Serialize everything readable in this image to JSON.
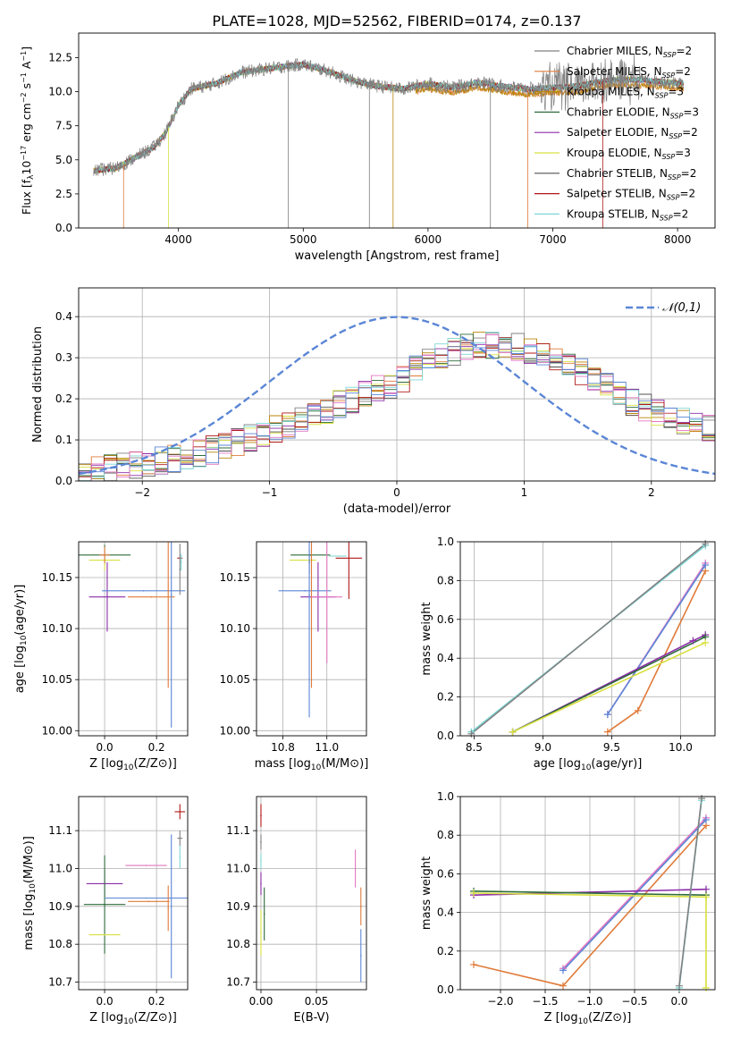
{
  "figure_title": "PLATE=1028, MJD=52562, FIBERID=0174, z=0.137",
  "chart_data": [
    {
      "id": "spectrum",
      "type": "line",
      "xlabel": "wavelength [Angstrom, rest frame]",
      "ylabel": "Flux [f",
      "ylabel_html": "Flux [f_λ 10^-17 erg cm^-2 s^-1 A^-1]",
      "xlim": [
        3200,
        8300
      ],
      "ylim": [
        0,
        14.3
      ],
      "xticks": [
        4000,
        5000,
        6000,
        7000,
        8000
      ],
      "yticks": [
        0.0,
        2.5,
        5.0,
        7.5,
        10.0,
        12.5
      ],
      "grid": false,
      "legend_position": "top-right",
      "continuum_anchors_x": [
        3320,
        3500,
        3700,
        3800,
        3900,
        4000,
        4100,
        4300,
        4500,
        4800,
        5000,
        5200,
        5400,
        5600,
        5800,
        6000,
        6200,
        6400,
        6600,
        6800,
        7000,
        7200,
        7400,
        7600,
        7800,
        8050
      ],
      "continuum_anchors_y": [
        4.2,
        4.4,
        5.4,
        5.9,
        7.0,
        9.0,
        10.2,
        10.6,
        11.4,
        11.8,
        12.0,
        11.5,
        10.8,
        10.4,
        10.2,
        10.6,
        10.3,
        10.7,
        10.4,
        10.2,
        10.3,
        10.4,
        10.8,
        10.9,
        10.8,
        10.6
      ],
      "series": [
        {
          "name": "Chabrier MILES, N_SSP=2",
          "color": "#808080"
        },
        {
          "name": "Salpeter MILES, N_SSP=2",
          "color": "#e07b39"
        },
        {
          "name": "Kroupa MILES, N_SSP=3",
          "color": "#b8860b"
        },
        {
          "name": "Chabrier ELODIE, N_SSP=3",
          "color": "#2e6b3a"
        },
        {
          "name": "Salpeter ELODIE, N_SSP=2",
          "color": "#8b2ca8"
        },
        {
          "name": "Kroupa ELODIE, N_SSP=3",
          "color": "#d8e040"
        },
        {
          "name": "Chabrier STELIB, N_SSP=2",
          "color": "#505050"
        },
        {
          "name": "Salpeter STELIB, N_SSP=2",
          "color": "#b01818"
        },
        {
          "name": "Kroupa STELIB, N_SSP=2",
          "color": "#7ed6d6"
        }
      ],
      "legend_entries": [
        {
          "pre": "Chabrier MILES, N",
          "sub": "SSP",
          "post": "=2",
          "color": "#808080"
        },
        {
          "pre": "Salpeter MILES, N",
          "sub": "SSP",
          "post": "=2",
          "color": "#e07b39"
        },
        {
          "pre": "Kroupa MILES, N",
          "sub": "SSP",
          "post": "=3",
          "color": "#b8860b"
        },
        {
          "pre": "Chabrier ELODIE, N",
          "sub": "SSP",
          "post": "=3",
          "color": "#2e6b3a"
        },
        {
          "pre": "Salpeter ELODIE, N",
          "sub": "SSP",
          "post": "=2",
          "color": "#8b2ca8"
        },
        {
          "pre": "Kroupa ELODIE, N",
          "sub": "SSP",
          "post": "=3",
          "color": "#d8e040"
        },
        {
          "pre": "Chabrier STELIB, N",
          "sub": "SSP",
          "post": "=2",
          "color": "#505050"
        },
        {
          "pre": "Salpeter STELIB, N",
          "sub": "SSP",
          "post": "=2",
          "color": "#b01818"
        },
        {
          "pre": "Kroupa STELIB, N",
          "sub": "SSP",
          "post": "=2",
          "color": "#7ed6d6"
        }
      ]
    },
    {
      "id": "residuals",
      "type": "line",
      "xlabel": "(data-model)/error",
      "ylabel": "Normed distribution",
      "xlim": [
        -2.5,
        2.5
      ],
      "ylim": [
        0,
        0.47
      ],
      "xticks": [
        -2,
        -1,
        0,
        1,
        2
      ],
      "yticks": [
        0.0,
        0.1,
        0.2,
        0.3,
        0.4
      ],
      "grid": true,
      "legend_position": "top-right",
      "gaussian": {
        "label": "𝒩(0,1)",
        "mean": 0,
        "sigma": 1,
        "color": "#5b86d6"
      },
      "bin_width": 0.1,
      "histogram_envelope_x": [
        -2.5,
        -2.0,
        -1.5,
        -1.0,
        -0.5,
        0.0,
        0.3,
        0.6,
        0.9,
        1.2,
        1.5,
        1.8,
        2.1,
        2.5
      ],
      "histogram_envelope_y": [
        0.02,
        0.04,
        0.07,
        0.12,
        0.18,
        0.24,
        0.3,
        0.33,
        0.33,
        0.3,
        0.26,
        0.2,
        0.16,
        0.12
      ],
      "series_colors": [
        "#808080",
        "#e07b39",
        "#b8860b",
        "#2e6b3a",
        "#8b2ca8",
        "#d8e040",
        "#505050",
        "#b01818",
        "#7ed6d6",
        "#e377c2",
        "#5b86d6"
      ]
    },
    {
      "id": "age_vs_Z",
      "type": "scatter",
      "xlabel": "Z [log",
      "ylabel": "age  [log",
      "xlim": [
        -0.1,
        0.32
      ],
      "ylim": [
        9.995,
        10.185
      ],
      "xticks": [
        0.0,
        0.2
      ],
      "yticks": [
        10.0,
        10.05,
        10.1,
        10.15
      ],
      "grid": true,
      "points": [
        {
          "x": 0.0,
          "y": 10.172,
          "xerr": 0.1,
          "yerr": 0.01,
          "color": "#2e6b3a"
        },
        {
          "x": 0.0,
          "y": 10.167,
          "xerr": 0.06,
          "yerr": 0.01,
          "color": "#d8e040"
        },
        {
          "x": 0.0,
          "y": 10.172,
          "xerr": 0.02,
          "yerr": 0.008,
          "color": "#e07b39"
        },
        {
          "x": 0.01,
          "y": 10.131,
          "xerr": 0.07,
          "yerr": 0.034,
          "color": "#8b2ca8"
        },
        {
          "x": 0.15,
          "y": 10.137,
          "xerr": 0.16,
          "yerr": 0.0,
          "color": "#5b86d6"
        },
        {
          "x": 0.18,
          "y": 10.131,
          "xerr": 0.09,
          "yerr": 0.0,
          "color": "#e07b39"
        },
        {
          "x": 0.245,
          "y": 10.137,
          "xerr": 0.0,
          "yerr": 0.095,
          "color": "#e07b39"
        },
        {
          "x": 0.257,
          "y": 10.133,
          "xerr": 0.0,
          "yerr": 0.13,
          "color": "#5b86d6"
        },
        {
          "x": 0.29,
          "y": 10.169,
          "xerr": 0.01,
          "yerr": 0.0,
          "color": "#b01818"
        },
        {
          "x": 0.295,
          "y": 10.165,
          "xerr": 0.0,
          "yerr": 0.008,
          "color": "#7ed6d6"
        },
        {
          "x": 0.29,
          "y": 10.158,
          "xerr": 0.0,
          "yerr": 0.025,
          "color": "#808080"
        }
      ]
    },
    {
      "id": "age_vs_mass",
      "type": "scatter",
      "xlabel": "mass [log",
      "ylabel": "",
      "xlim": [
        10.68,
        11.18
      ],
      "ylim": [
        9.995,
        10.185
      ],
      "xticks": [
        10.8,
        11.0
      ],
      "yticks": [
        10.0,
        10.05,
        10.1,
        10.15
      ],
      "grid": true,
      "points": [
        {
          "x": 10.925,
          "y": 10.172,
          "xerr": 0.09,
          "yerr": 0.0,
          "color": "#2e6b3a"
        },
        {
          "x": 10.89,
          "y": 10.167,
          "xerr": 0.06,
          "yerr": 0.0,
          "color": "#d8e040"
        },
        {
          "x": 10.92,
          "y": 10.165,
          "xerr": 0.0,
          "yerr": 0.012,
          "color": "#2e6b3a"
        },
        {
          "x": 10.96,
          "y": 10.131,
          "xerr": 0.08,
          "yerr": 0.034,
          "color": "#8b2ca8"
        },
        {
          "x": 10.9,
          "y": 10.137,
          "xerr": 0.12,
          "yerr": 0.0,
          "color": "#5b86d6"
        },
        {
          "x": 10.93,
          "y": 10.137,
          "xerr": 0.0,
          "yerr": 0.095,
          "color": "#e07b39"
        },
        {
          "x": 10.92,
          "y": 10.133,
          "xerr": 0.0,
          "yerr": 0.12,
          "color": "#5b86d6"
        },
        {
          "x": 11.0,
          "y": 10.131,
          "xerr": 0.07,
          "yerr": 0.065,
          "color": "#e377c2"
        },
        {
          "x": 11.1,
          "y": 10.169,
          "xerr": 0.06,
          "yerr": 0.04,
          "color": "#b01818"
        },
        {
          "x": 11.05,
          "y": 10.171,
          "xerr": 0.04,
          "yerr": 0.0,
          "color": "#7ed6d6"
        }
      ]
    },
    {
      "id": "weight_vs_age",
      "type": "line",
      "xlabel": "age  [log",
      "ylabel": "mass weight",
      "xlim": [
        8.4,
        10.25
      ],
      "ylim": [
        0,
        1.0
      ],
      "xticks": [
        8.5,
        9.0,
        9.5,
        10.0
      ],
      "yticks": [
        0.0,
        0.2,
        0.4,
        0.6,
        0.8,
        1.0
      ],
      "grid": true,
      "series": [
        {
          "color": "#e07b39",
          "x": [
            9.47,
            9.69,
            10.18
          ],
          "y": [
            0.02,
            0.13,
            0.85
          ]
        },
        {
          "color": "#e377c2",
          "x": [
            9.47,
            10.18
          ],
          "y": [
            0.11,
            0.89
          ]
        },
        {
          "color": "#5b86d6",
          "x": [
            9.47,
            10.18
          ],
          "y": [
            0.11,
            0.88
          ]
        },
        {
          "color": "#8b2ca8",
          "x": [
            8.78,
            10.09,
            10.18
          ],
          "y": [
            0.02,
            0.49,
            0.52
          ]
        },
        {
          "color": "#2e6b3a",
          "x": [
            8.78,
            10.18
          ],
          "y": [
            0.02,
            0.51
          ]
        },
        {
          "color": "#d8e040",
          "x": [
            8.78,
            10.18
          ],
          "y": [
            0.02,
            0.48
          ]
        },
        {
          "color": "#7ed6d6",
          "x": [
            8.48,
            10.18
          ],
          "y": [
            0.02,
            0.98
          ]
        },
        {
          "color": "#808080",
          "x": [
            8.48,
            10.18
          ],
          "y": [
            0.01,
            0.99
          ]
        }
      ]
    },
    {
      "id": "mass_vs_Z",
      "type": "scatter",
      "xlabel": "Z [log",
      "ylabel": "mass [log",
      "xlim": [
        -0.1,
        0.32
      ],
      "ylim": [
        10.68,
        11.19
      ],
      "xticks": [
        0.0,
        0.2
      ],
      "yticks": [
        10.7,
        10.8,
        10.9,
        11.0,
        11.1
      ],
      "grid": true,
      "points": [
        {
          "x": 0.0,
          "y": 10.96,
          "xerr": 0.07,
          "yerr": 0.035,
          "color": "#8b2ca8"
        },
        {
          "x": 0.0,
          "y": 10.905,
          "xerr": 0.08,
          "yerr": 0.0,
          "color": "#2e6b3a"
        },
        {
          "x": 0.0,
          "y": 10.905,
          "xerr": 0.0,
          "yerr": 0.13,
          "color": "#2e6b3a"
        },
        {
          "x": 0.0,
          "y": 10.825,
          "xerr": 0.06,
          "yerr": 0.0,
          "color": "#d8e040"
        },
        {
          "x": 0.16,
          "y": 11.008,
          "xerr": 0.08,
          "yerr": 0.0,
          "color": "#e377c2"
        },
        {
          "x": 0.16,
          "y": 10.922,
          "xerr": 0.16,
          "yerr": 0.0,
          "color": "#5b86d6"
        },
        {
          "x": 0.17,
          "y": 10.913,
          "xerr": 0.08,
          "yerr": 0.0,
          "color": "#e07b39"
        },
        {
          "x": 0.245,
          "y": 10.895,
          "xerr": 0.0,
          "yerr": 0.06,
          "color": "#e07b39"
        },
        {
          "x": 0.257,
          "y": 10.9,
          "xerr": 0.0,
          "yerr": 0.19,
          "color": "#5b86d6"
        },
        {
          "x": 0.29,
          "y": 11.15,
          "xerr": 0.02,
          "yerr": 0.02,
          "color": "#b01818"
        },
        {
          "x": 0.29,
          "y": 11.08,
          "xerr": 0.01,
          "yerr": 0.02,
          "color": "#808080"
        },
        {
          "x": 0.29,
          "y": 11.03,
          "xerr": 0.0,
          "yerr": 0.03,
          "color": "#7ed6d6"
        }
      ]
    },
    {
      "id": "mass_vs_EBV",
      "type": "scatter",
      "xlabel": "E(B-V)",
      "ylabel": "",
      "xlim": [
        -0.004,
        0.095
      ],
      "ylim": [
        10.68,
        11.19
      ],
      "xticks": [
        0.0,
        0.05
      ],
      "yticks": [
        10.7,
        10.8,
        10.9,
        11.0,
        11.1
      ],
      "grid": true,
      "points": [
        {
          "x": 0.0,
          "y": 11.14,
          "xerr": 0.0,
          "yerr": 0.03,
          "color": "#b01818"
        },
        {
          "x": 0.0,
          "y": 11.07,
          "xerr": 0.0,
          "yerr": 0.02,
          "color": "#808080"
        },
        {
          "x": 0.0,
          "y": 11.02,
          "xerr": 0.0,
          "yerr": 0.02,
          "color": "#7ed6d6"
        },
        {
          "x": 0.0,
          "y": 10.96,
          "xerr": 0.0,
          "yerr": 0.03,
          "color": "#8b2ca8"
        },
        {
          "x": 0.0,
          "y": 10.83,
          "xerr": 0.0,
          "yerr": 0.06,
          "color": "#d8e040"
        },
        {
          "x": 0.003,
          "y": 10.88,
          "xerr": 0.0,
          "yerr": 0.07,
          "color": "#2e6b3a"
        },
        {
          "x": 0.085,
          "y": 11.0,
          "xerr": 0.0,
          "yerr": 0.05,
          "color": "#e377c2"
        },
        {
          "x": 0.09,
          "y": 10.9,
          "xerr": 0.0,
          "yerr": 0.05,
          "color": "#e07b39"
        },
        {
          "x": 0.09,
          "y": 10.77,
          "xerr": 0.0,
          "yerr": 0.07,
          "color": "#5b86d6"
        }
      ]
    },
    {
      "id": "weight_vs_Z",
      "type": "line",
      "xlabel": "Z [log",
      "ylabel": "mass weight",
      "xlim": [
        -2.45,
        0.4
      ],
      "ylim": [
        0,
        1.0
      ],
      "xticks": [
        -2.0,
        -1.5,
        -1.0,
        -0.5,
        0.0
      ],
      "yticks": [
        0.0,
        0.2,
        0.4,
        0.6,
        0.8,
        1.0
      ],
      "grid": true,
      "series": [
        {
          "color": "#e07b39",
          "x": [
            -2.3,
            -1.3,
            0.3
          ],
          "y": [
            0.13,
            0.02,
            0.85
          ]
        },
        {
          "color": "#e377c2",
          "x": [
            -1.3,
            0.3
          ],
          "y": [
            0.11,
            0.89
          ]
        },
        {
          "color": "#5b86d6",
          "x": [
            -1.3,
            0.3
          ],
          "y": [
            0.1,
            0.88
          ]
        },
        {
          "color": "#8b2ca8",
          "x": [
            -2.3,
            0.3
          ],
          "y": [
            0.49,
            0.52
          ]
        },
        {
          "color": "#2e6b3a",
          "x": [
            -2.3,
            0.3
          ],
          "y": [
            0.51,
            0.49
          ]
        },
        {
          "color": "#d8e040",
          "x": [
            -2.3,
            0.3,
            0.3
          ],
          "y": [
            0.5,
            0.48,
            0.01
          ]
        },
        {
          "color": "#7ed6d6",
          "x": [
            0.0,
            0.25
          ],
          "y": [
            0.01,
            0.98
          ]
        },
        {
          "color": "#808080",
          "x": [
            0.0,
            0.25
          ],
          "y": [
            0.02,
            0.99
          ]
        }
      ]
    }
  ]
}
